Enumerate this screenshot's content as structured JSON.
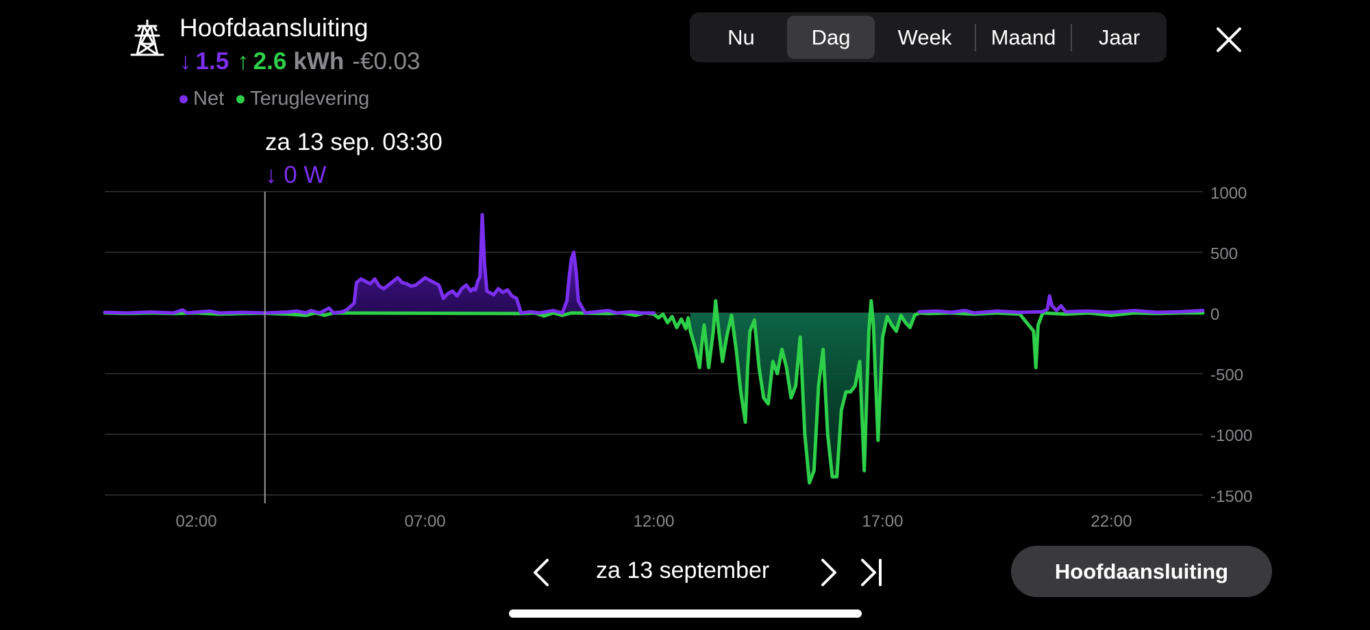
{
  "header": {
    "icon": "power-pylon-icon",
    "title": "Hoofdaansluiting",
    "grid_kwh": "1.5",
    "return_kwh": "2.6",
    "unit": "kWh",
    "cost": "-€0.03"
  },
  "legend": [
    {
      "label": "Net",
      "color": "#7b2ff0"
    },
    {
      "label": "Teruglevering",
      "color": "#2ed04a"
    }
  ],
  "periods": {
    "items": [
      "Nu",
      "Dag",
      "Week",
      "Maand",
      "Jaar"
    ],
    "selected": "Dag"
  },
  "tooltip": {
    "date": "za 13 sep. 03:30",
    "value": "0 W"
  },
  "navigation": {
    "date": "za 13 september"
  },
  "device_button": "Hoofdaansluiting",
  "colors": {
    "grid": "#7b2ff0",
    "return": "#2ed04a",
    "background": "#000000"
  },
  "chart_data": {
    "type": "area",
    "y_ticks": [
      "1000",
      "500",
      "0",
      "-500",
      "-1000",
      "-1500"
    ],
    "x_ticks": [
      "02:00",
      "07:00",
      "12:00",
      "17:00",
      "22:00"
    ],
    "ylim": [
      -1550,
      1050
    ],
    "xlim": [
      0,
      24
    ],
    "cursor_x": 3.5,
    "series": [
      {
        "values": [
          [
            0.0,
            5
          ],
          [
            0.5,
            0
          ],
          [
            1.0,
            8
          ],
          [
            1.5,
            0
          ],
          [
            1.7,
            25
          ],
          [
            1.8,
            0
          ],
          [
            2.3,
            15
          ],
          [
            2.5,
            0
          ],
          [
            3.0,
            5
          ],
          [
            3.5,
            0
          ],
          [
            4.0,
            8
          ],
          [
            4.2,
            15
          ],
          [
            4.4,
            0
          ],
          [
            4.5,
            20
          ],
          [
            4.7,
            0
          ],
          [
            4.9,
            40
          ],
          [
            5.0,
            0
          ],
          [
            5.2,
            10
          ],
          [
            5.3,
            30
          ],
          [
            5.45,
            80
          ],
          [
            5.5,
            250
          ],
          [
            5.6,
            280
          ],
          [
            5.7,
            260
          ],
          [
            5.8,
            240
          ],
          [
            5.9,
            280
          ],
          [
            6.0,
            220
          ],
          [
            6.1,
            200
          ],
          [
            6.2,
            230
          ],
          [
            6.3,
            260
          ],
          [
            6.4,
            290
          ],
          [
            6.5,
            250
          ],
          [
            6.6,
            240
          ],
          [
            6.7,
            220
          ],
          [
            6.8,
            230
          ],
          [
            6.9,
            260
          ],
          [
            7.0,
            290
          ],
          [
            7.1,
            270
          ],
          [
            7.2,
            250
          ],
          [
            7.3,
            230
          ],
          [
            7.4,
            120
          ],
          [
            7.5,
            160
          ],
          [
            7.6,
            180
          ],
          [
            7.7,
            140
          ],
          [
            7.8,
            200
          ],
          [
            7.9,
            230
          ],
          [
            8.0,
            180
          ],
          [
            8.05,
            200
          ],
          [
            8.1,
            190
          ],
          [
            8.15,
            260
          ],
          [
            8.2,
            300
          ],
          [
            8.25,
            810
          ],
          [
            8.3,
            400
          ],
          [
            8.35,
            180
          ],
          [
            8.5,
            150
          ],
          [
            8.6,
            200
          ],
          [
            8.7,
            170
          ],
          [
            8.8,
            190
          ],
          [
            8.9,
            140
          ],
          [
            9.0,
            120
          ],
          [
            9.1,
            0
          ],
          [
            9.3,
            10
          ],
          [
            9.5,
            0
          ],
          [
            9.8,
            20
          ],
          [
            10.0,
            0
          ],
          [
            10.1,
            100
          ],
          [
            10.15,
            300
          ],
          [
            10.2,
            450
          ],
          [
            10.25,
            500
          ],
          [
            10.3,
            350
          ],
          [
            10.35,
            100
          ],
          [
            10.5,
            0
          ],
          [
            11.0,
            20
          ],
          [
            11.2,
            0
          ],
          [
            11.5,
            10
          ],
          [
            11.7,
            0
          ],
          [
            12.0,
            0
          ]
        ]
      },
      {
        "values": [
          [
            0.0,
            0
          ],
          [
            0.5,
            -5
          ],
          [
            1.0,
            0
          ],
          [
            1.5,
            -5
          ],
          [
            2.0,
            0
          ],
          [
            2.5,
            -10
          ],
          [
            3.0,
            -5
          ],
          [
            3.5,
            -3
          ],
          [
            4.0,
            -10
          ],
          [
            4.4,
            -20
          ],
          [
            4.6,
            0
          ],
          [
            4.8,
            -20
          ],
          [
            5.0,
            0
          ],
          [
            9.1,
            -5
          ],
          [
            9.4,
            0
          ],
          [
            9.6,
            -25
          ],
          [
            9.8,
            0
          ],
          [
            10.0,
            -20
          ],
          [
            10.2,
            0
          ],
          [
            11.0,
            -5
          ],
          [
            11.3,
            0
          ],
          [
            11.6,
            -20
          ],
          [
            11.8,
            0
          ],
          [
            12.0,
            -10
          ],
          [
            12.1,
            -40
          ],
          [
            12.2,
            -10
          ],
          [
            12.3,
            -80
          ],
          [
            12.4,
            -30
          ],
          [
            12.5,
            -120
          ],
          [
            12.6,
            -50
          ],
          [
            12.7,
            -130
          ],
          [
            12.75,
            -40
          ],
          [
            12.8,
            -150
          ],
          [
            12.9,
            -280
          ],
          [
            13.0,
            -450
          ],
          [
            13.05,
            -250
          ],
          [
            13.1,
            -100
          ],
          [
            13.2,
            -450
          ],
          [
            13.3,
            -150
          ],
          [
            13.35,
            100
          ],
          [
            13.4,
            -80
          ],
          [
            13.5,
            -400
          ],
          [
            13.6,
            -180
          ],
          [
            13.7,
            -20
          ],
          [
            13.8,
            -300
          ],
          [
            13.9,
            -650
          ],
          [
            14.0,
            -900
          ],
          [
            14.05,
            -450
          ],
          [
            14.1,
            -150
          ],
          [
            14.2,
            -60
          ],
          [
            14.3,
            -450
          ],
          [
            14.4,
            -700
          ],
          [
            14.5,
            -750
          ],
          [
            14.6,
            -400
          ],
          [
            14.7,
            -500
          ],
          [
            14.8,
            -300
          ],
          [
            14.9,
            -450
          ],
          [
            15.0,
            -700
          ],
          [
            15.1,
            -600
          ],
          [
            15.2,
            -200
          ],
          [
            15.3,
            -1000
          ],
          [
            15.4,
            -1400
          ],
          [
            15.5,
            -1300
          ],
          [
            15.6,
            -600
          ],
          [
            15.7,
            -300
          ],
          [
            15.8,
            -1000
          ],
          [
            15.9,
            -1350
          ],
          [
            16.0,
            -1350
          ],
          [
            16.1,
            -800
          ],
          [
            16.2,
            -650
          ],
          [
            16.3,
            -650
          ],
          [
            16.4,
            -600
          ],
          [
            16.5,
            -400
          ],
          [
            16.6,
            -1300
          ],
          [
            16.7,
            -150
          ],
          [
            16.75,
            100
          ],
          [
            16.8,
            -100
          ],
          [
            16.9,
            -1050
          ],
          [
            17.0,
            -200
          ],
          [
            17.1,
            -30
          ],
          [
            17.2,
            -100
          ],
          [
            17.3,
            -150
          ],
          [
            17.4,
            -20
          ],
          [
            17.5,
            -80
          ],
          [
            17.6,
            -120
          ],
          [
            17.7,
            -20
          ],
          [
            17.8,
            0
          ],
          [
            18.0,
            -5
          ],
          [
            18.5,
            0
          ],
          [
            19.0,
            -10
          ],
          [
            19.5,
            0
          ],
          [
            20.0,
            -10
          ],
          [
            20.3,
            -150
          ],
          [
            20.35,
            -450
          ],
          [
            20.4,
            -100
          ],
          [
            20.5,
            0
          ],
          [
            21.0,
            -10
          ],
          [
            21.5,
            0
          ],
          [
            22.0,
            -20
          ],
          [
            22.5,
            0
          ],
          [
            23.0,
            -5
          ],
          [
            23.5,
            0
          ],
          [
            24.0,
            0
          ]
        ]
      },
      {
        "values": [
          [
            17.8,
            10
          ],
          [
            18.2,
            15
          ],
          [
            18.5,
            5
          ],
          [
            18.8,
            20
          ],
          [
            19.0,
            0
          ],
          [
            19.5,
            15
          ],
          [
            20.0,
            5
          ],
          [
            20.5,
            10
          ],
          [
            20.6,
            30
          ],
          [
            20.65,
            140
          ],
          [
            20.7,
            60
          ],
          [
            20.8,
            20
          ],
          [
            20.9,
            60
          ],
          [
            21.0,
            10
          ],
          [
            21.5,
            15
          ],
          [
            22.0,
            5
          ],
          [
            22.5,
            20
          ],
          [
            23.0,
            5
          ],
          [
            23.5,
            10
          ],
          [
            24.0,
            20
          ]
        ]
      }
    ]
  }
}
